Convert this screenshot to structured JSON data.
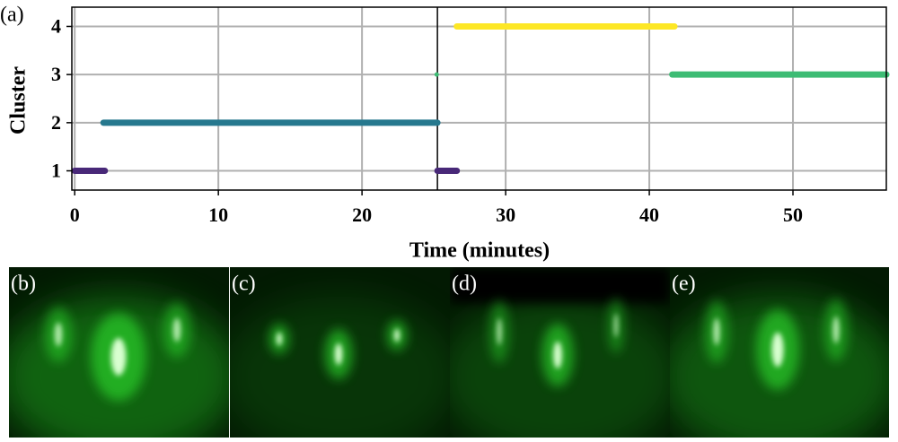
{
  "chart_data": {
    "type": "timeline",
    "panel_label": "(a)",
    "xlabel": "Time (minutes)",
    "ylabel": "Cluster",
    "xlim": [
      -0.2,
      56.5
    ],
    "ylim": [
      0.6,
      4.4
    ],
    "xticks": [
      0,
      10,
      20,
      30,
      40,
      50
    ],
    "yticks": [
      1,
      2,
      3,
      4
    ],
    "grid": true,
    "vline": 25.25,
    "segments": [
      {
        "y": 1,
        "x": [
          0,
          2.1
        ],
        "color": "#482878"
      },
      {
        "y": 2,
        "x": [
          2.0,
          25.25
        ],
        "color": "#26788e"
      },
      {
        "y": 3,
        "x": [
          25.2,
          25.2
        ],
        "color": "#3dbc74"
      },
      {
        "y": 1,
        "x": [
          25.25,
          26.6
        ],
        "color": "#482878"
      },
      {
        "y": 4,
        "x": [
          26.6,
          41.75
        ],
        "color": "#fde725"
      },
      {
        "y": 3,
        "x": [
          41.6,
          56.5
        ],
        "color": "#3dbc74"
      }
    ]
  },
  "images": {
    "panels": [
      {
        "label": "(b)"
      },
      {
        "label": "(c)"
      },
      {
        "label": "(d)"
      },
      {
        "label": "(e)"
      }
    ]
  }
}
